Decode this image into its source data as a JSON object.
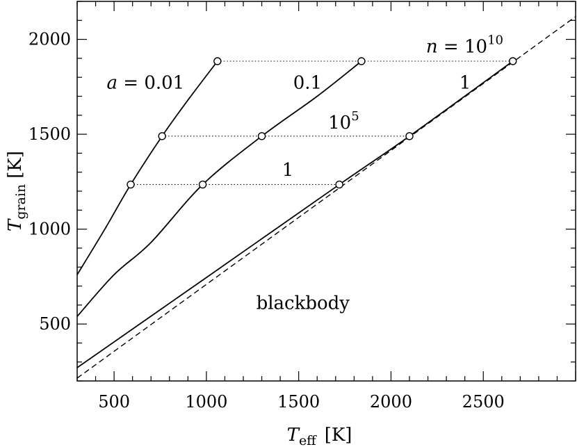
{
  "chart_data": {
    "type": "line",
    "xlabel": {
      "main": "T",
      "sub": "eff",
      "unit": "[K]"
    },
    "ylabel": {
      "main": "T",
      "sub": "grain",
      "unit": "[K]"
    },
    "xlim": [
      300,
      3000
    ],
    "ylim": [
      200,
      2200
    ],
    "x_ticks": [
      500,
      1000,
      1500,
      2000,
      2500
    ],
    "y_ticks": [
      500,
      1000,
      1500,
      2000
    ],
    "x_tick_labels": [
      "500",
      "1000",
      "1500",
      "2000",
      "2500"
    ],
    "y_tick_labels": [
      "500",
      "1000",
      "1500",
      "2000"
    ],
    "series": [
      {
        "name": "a = 0.01",
        "style": "solid",
        "x": [
          300,
          450,
          590,
          760,
          900,
          1060
        ],
        "y": [
          760,
          1000,
          1235,
          1490,
          1680,
          1885
        ]
      },
      {
        "name": "0.1",
        "style": "solid",
        "x": [
          300,
          500,
          700,
          980,
          1300,
          1600,
          1840
        ],
        "y": [
          540,
          760,
          930,
          1235,
          1490,
          1700,
          1885
        ]
      },
      {
        "name": "1",
        "style": "solid",
        "x": [
          300,
          1000,
          1720,
          2100,
          2660
        ],
        "y": [
          270,
          745,
          1235,
          1490,
          1885
        ]
      },
      {
        "name": "blackbody",
        "style": "dashed",
        "x": [
          300,
          3000
        ],
        "y": [
          215,
          2120
        ]
      }
    ],
    "density_levels": [
      {
        "label": "1",
        "y": 1235,
        "x_points": [
          590,
          980,
          1720
        ]
      },
      {
        "label_base": "10",
        "label_exp": "5",
        "y": 1490,
        "x_points": [
          760,
          1300,
          2100
        ]
      },
      {
        "label_prefix": "n = ",
        "label_base": "10",
        "label_exp": "10",
        "y": 1885,
        "x_points": [
          1060,
          1840,
          2660
        ]
      }
    ],
    "annotations": {
      "a_label": {
        "prefix": "a",
        "text": " = 0.01",
        "x": 460,
        "y": 1740
      },
      "a01_label": {
        "text": "0.1",
        "x": 1470,
        "y": 1740
      },
      "a1_label": {
        "text": "1",
        "x": 2370,
        "y": 1740
      },
      "n1_label": {
        "text": "1",
        "x": 1410,
        "y": 1280
      },
      "n5_label": {
        "base": "10",
        "exp": "5",
        "x": 1660,
        "y": 1530
      },
      "n10_label": {
        "prefix": "n",
        "eq": " = ",
        "base": "10",
        "exp": "10",
        "x": 2190,
        "y": 1930
      },
      "blackbody_label": {
        "text": "blackbody",
        "x": 1270,
        "y": 580
      }
    }
  }
}
